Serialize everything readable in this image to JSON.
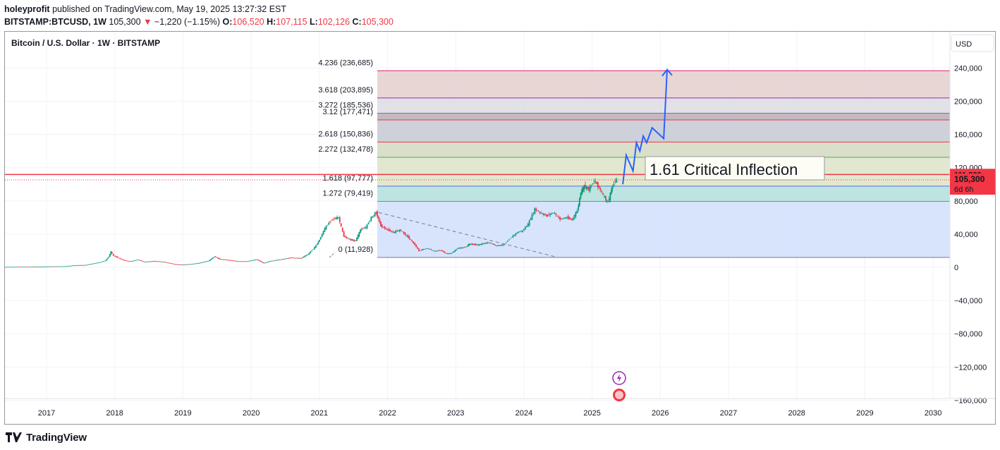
{
  "header": {
    "publisher": "holeyprofit",
    "published_text": "published on TradingView.com, May 19, 2025 13:27:32 EST",
    "symbol": "BITSTAMP:BTCUSD",
    "interval": "1W",
    "price": "105,300",
    "change_arrow": "▼",
    "change": "−1,220 (−1.15%)",
    "open_label": "O:",
    "open": "106,520",
    "high_label": "H:",
    "high": "107,115",
    "low_label": "L:",
    "low": "102,126",
    "close_label": "C:",
    "close": "105,300"
  },
  "chart_title": "Bitcoin / U.S. Dollar · 1W · BITSTAMP",
  "currency_button": "USD",
  "price_tags": {
    "level": "111,833",
    "current": "105,300",
    "countdown": "6d 6h"
  },
  "annotation": "1.61 Critical Inflection",
  "footer": {
    "brand": "TradingView"
  },
  "colors": {
    "up": "#089981",
    "down": "#f23645",
    "projection": "#2962ff",
    "zone_blue": "#d1dffc"
  },
  "chart_data": {
    "type": "candlestick",
    "title": "Bitcoin / U.S. Dollar · 1W · BITSTAMP",
    "x_ticks": [
      "2017",
      "2018",
      "2019",
      "2020",
      "2021",
      "2022",
      "2023",
      "2024",
      "2025",
      "2026",
      "2027",
      "2028",
      "2029",
      "2030"
    ],
    "y_ticks": [
      "240,000",
      "200,000",
      "160,000",
      "120,000",
      "80,000",
      "40,000",
      "0",
      "−40,000",
      "−80,000",
      "−120,000",
      "−160,000"
    ],
    "y_tick_values": [
      240000,
      200000,
      160000,
      120000,
      80000,
      40000,
      0,
      -40000,
      -80000,
      -120000,
      -160000
    ],
    "ylim": [
      -170000,
      265000
    ],
    "xlim": [
      2016.4,
      2030.4
    ],
    "grid": true,
    "fib_levels": [
      {
        "ratio": 0,
        "price": 11928,
        "label": "0 (11,928)",
        "color": "#787b86"
      },
      {
        "ratio": 1.272,
        "price": 79419,
        "label": "1.272 (79,419)",
        "color": "#4caf50"
      },
      {
        "ratio": 1.618,
        "price": 97777,
        "label": "1.618 (97,777)",
        "color": "#5b6ee1"
      },
      {
        "ratio": 2.272,
        "price": 132478,
        "label": "2.272 (132,478)",
        "color": "#4caf50"
      },
      {
        "ratio": 2.618,
        "price": 150836,
        "label": "2.618 (150,836)",
        "color": "#f23645"
      },
      {
        "ratio": 3.12,
        "price": 177471,
        "label": "3.12 (177,471)",
        "color": "#f23645"
      },
      {
        "ratio": 3.272,
        "price": 185536,
        "label": "3.272 (185,536)",
        "color": "#787b86"
      },
      {
        "ratio": 3.618,
        "price": 203895,
        "label": "3.618 (203,895)",
        "color": "#9c27b0"
      },
      {
        "ratio": 4.236,
        "price": 236685,
        "label": "4.236 (236,685)",
        "color": "#e91e63"
      }
    ],
    "horizontal_line": 111833,
    "current_price": 105300,
    "trendline": [
      [
        2021.87,
        66000
      ],
      [
        2024.5,
        11928
      ]
    ],
    "projection_path": [
      [
        2025.45,
        100000
      ],
      [
        2025.5,
        135000
      ],
      [
        2025.6,
        116000
      ],
      [
        2025.65,
        150000
      ],
      [
        2025.7,
        140000
      ],
      [
        2025.75,
        158000
      ],
      [
        2025.8,
        150000
      ],
      [
        2025.88,
        168000
      ],
      [
        2026.05,
        155000
      ],
      [
        2026.1,
        238000
      ]
    ],
    "weekly_closes": [
      [
        2016.4,
        450
      ],
      [
        2016.6,
        650
      ],
      [
        2016.8,
        700
      ],
      [
        2016.95,
        900
      ],
      [
        2017.1,
        1100
      ],
      [
        2017.3,
        1300
      ],
      [
        2017.45,
        2500
      ],
      [
        2017.6,
        2800
      ],
      [
        2017.7,
        4500
      ],
      [
        2017.8,
        6000
      ],
      [
        2017.88,
        8000
      ],
      [
        2017.93,
        13000
      ],
      [
        2017.96,
        19000
      ],
      [
        2018.0,
        14000
      ],
      [
        2018.08,
        11000
      ],
      [
        2018.15,
        8500
      ],
      [
        2018.25,
        7000
      ],
      [
        2018.35,
        9200
      ],
      [
        2018.45,
        6500
      ],
      [
        2018.6,
        7500
      ],
      [
        2018.75,
        6400
      ],
      [
        2018.88,
        4000
      ],
      [
        2018.95,
        3200
      ],
      [
        2019.1,
        3600
      ],
      [
        2019.25,
        5000
      ],
      [
        2019.4,
        8000
      ],
      [
        2019.48,
        13000
      ],
      [
        2019.55,
        10000
      ],
      [
        2019.7,
        8500
      ],
      [
        2019.85,
        7200
      ],
      [
        2019.95,
        7200
      ],
      [
        2020.1,
        9500
      ],
      [
        2020.2,
        5000
      ],
      [
        2020.3,
        7500
      ],
      [
        2020.45,
        9500
      ],
      [
        2020.6,
        11500
      ],
      [
        2020.75,
        11000
      ],
      [
        2020.85,
        15500
      ],
      [
        2020.95,
        24000
      ],
      [
        2021.02,
        33000
      ],
      [
        2021.1,
        47000
      ],
      [
        2021.2,
        58000
      ],
      [
        2021.3,
        60000
      ],
      [
        2021.38,
        37000
      ],
      [
        2021.48,
        33000
      ],
      [
        2021.55,
        32000
      ],
      [
        2021.62,
        45000
      ],
      [
        2021.7,
        48000
      ],
      [
        2021.78,
        60000
      ],
      [
        2021.85,
        66000
      ],
      [
        2021.92,
        50000
      ],
      [
        2022.0,
        46000
      ],
      [
        2022.1,
        42000
      ],
      [
        2022.2,
        45000
      ],
      [
        2022.3,
        38000
      ],
      [
        2022.4,
        29000
      ],
      [
        2022.48,
        20000
      ],
      [
        2022.6,
        23000
      ],
      [
        2022.7,
        19500
      ],
      [
        2022.8,
        20500
      ],
      [
        2022.88,
        16500
      ],
      [
        2022.95,
        16800
      ],
      [
        2023.05,
        23000
      ],
      [
        2023.15,
        24000
      ],
      [
        2023.22,
        28000
      ],
      [
        2023.35,
        27000
      ],
      [
        2023.5,
        30000
      ],
      [
        2023.62,
        26000
      ],
      [
        2023.72,
        27000
      ],
      [
        2023.82,
        35000
      ],
      [
        2023.92,
        42000
      ],
      [
        2024.0,
        44000
      ],
      [
        2024.08,
        52000
      ],
      [
        2024.18,
        70000
      ],
      [
        2024.25,
        66000
      ],
      [
        2024.35,
        62000
      ],
      [
        2024.45,
        66000
      ],
      [
        2024.55,
        58000
      ],
      [
        2024.65,
        60000
      ],
      [
        2024.72,
        57000
      ],
      [
        2024.8,
        68000
      ],
      [
        2024.85,
        90000
      ],
      [
        2024.9,
        98000
      ],
      [
        2024.97,
        94000
      ],
      [
        2025.05,
        104000
      ],
      [
        2025.12,
        96000
      ],
      [
        2025.2,
        84000
      ],
      [
        2025.25,
        78000
      ],
      [
        2025.3,
        94000
      ],
      [
        2025.36,
        104000
      ],
      [
        2025.38,
        105300
      ]
    ]
  }
}
